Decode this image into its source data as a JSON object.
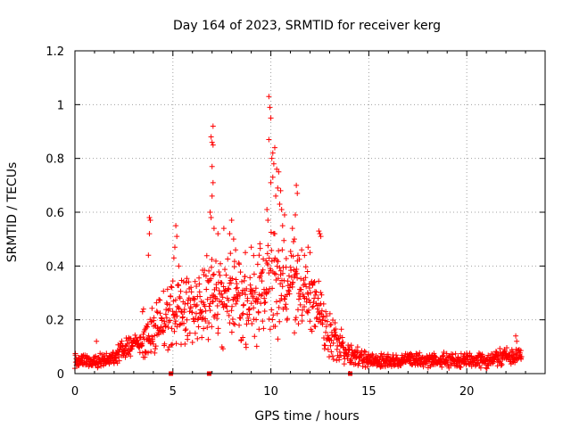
{
  "chart_data": {
    "type": "scatter",
    "title": "Day 164 of 2023, SRMTID for receiver kerg",
    "xlabel": "GPS time / hours",
    "ylabel": "SRMTID / TECUs",
    "xlim": [
      0,
      24
    ],
    "ylim": [
      0,
      1.2
    ],
    "xticks": [
      0,
      5,
      10,
      15,
      20
    ],
    "yticks": [
      0,
      0.2,
      0.4,
      0.6,
      0.8,
      1,
      1.2
    ],
    "ytick_labels": [
      "0",
      "0.2",
      "0.4",
      "0.6",
      "0.8",
      "1",
      "1.2"
    ],
    "grid": true,
    "marker": "+",
    "color": "#ff0000",
    "envelope": [
      {
        "x": 0.0,
        "base": 0.05,
        "spread": 0.02
      },
      {
        "x": 1.0,
        "base": 0.04,
        "spread": 0.02
      },
      {
        "x": 2.0,
        "base": 0.06,
        "spread": 0.02
      },
      {
        "x": 2.5,
        "base": 0.09,
        "spread": 0.03
      },
      {
        "x": 3.0,
        "base": 0.11,
        "spread": 0.03
      },
      {
        "x": 3.5,
        "base": 0.12,
        "spread": 0.05
      },
      {
        "x": 4.0,
        "base": 0.16,
        "spread": 0.07
      },
      {
        "x": 4.5,
        "base": 0.2,
        "spread": 0.08
      },
      {
        "x": 5.0,
        "base": 0.23,
        "spread": 0.09
      },
      {
        "x": 6.0,
        "base": 0.25,
        "spread": 0.1
      },
      {
        "x": 7.0,
        "base": 0.28,
        "spread": 0.12
      },
      {
        "x": 8.0,
        "base": 0.28,
        "spread": 0.12
      },
      {
        "x": 9.0,
        "base": 0.26,
        "spread": 0.11
      },
      {
        "x": 10.0,
        "base": 0.34,
        "spread": 0.14
      },
      {
        "x": 11.0,
        "base": 0.33,
        "spread": 0.12
      },
      {
        "x": 12.0,
        "base": 0.28,
        "spread": 0.1
      },
      {
        "x": 12.5,
        "base": 0.22,
        "spread": 0.08
      },
      {
        "x": 13.0,
        "base": 0.14,
        "spread": 0.06
      },
      {
        "x": 13.5,
        "base": 0.11,
        "spread": 0.05
      },
      {
        "x": 14.0,
        "base": 0.07,
        "spread": 0.03
      },
      {
        "x": 15.0,
        "base": 0.05,
        "spread": 0.02
      },
      {
        "x": 17.0,
        "base": 0.05,
        "spread": 0.02
      },
      {
        "x": 19.0,
        "base": 0.05,
        "spread": 0.02
      },
      {
        "x": 20.0,
        "base": 0.05,
        "spread": 0.02
      },
      {
        "x": 21.0,
        "base": 0.05,
        "spread": 0.02
      },
      {
        "x": 22.5,
        "base": 0.07,
        "spread": 0.03
      },
      {
        "x": 22.8,
        "base": 0.06,
        "spread": 0.02
      }
    ],
    "sample_count": 1400,
    "sample_range": [
      0,
      22.8
    ],
    "peaks": [
      {
        "x": 3.8,
        "y": 0.58
      },
      {
        "x": 3.85,
        "y": 0.57
      },
      {
        "x": 3.8,
        "y": 0.52
      },
      {
        "x": 3.75,
        "y": 0.44
      },
      {
        "x": 3.5,
        "y": 0.24
      },
      {
        "x": 3.45,
        "y": 0.23
      },
      {
        "x": 5.15,
        "y": 0.55
      },
      {
        "x": 5.2,
        "y": 0.51
      },
      {
        "x": 5.1,
        "y": 0.47
      },
      {
        "x": 5.3,
        "y": 0.4
      },
      {
        "x": 5.05,
        "y": 0.43
      },
      {
        "x": 6.95,
        "y": 0.88
      },
      {
        "x": 7.05,
        "y": 0.92
      },
      {
        "x": 7.0,
        "y": 0.86
      },
      {
        "x": 7.05,
        "y": 0.85
      },
      {
        "x": 7.0,
        "y": 0.77
      },
      {
        "x": 7.05,
        "y": 0.71
      },
      {
        "x": 7.0,
        "y": 0.66
      },
      {
        "x": 6.9,
        "y": 0.6
      },
      {
        "x": 6.95,
        "y": 0.58
      },
      {
        "x": 7.1,
        "y": 0.54
      },
      {
        "x": 7.3,
        "y": 0.52
      },
      {
        "x": 7.6,
        "y": 0.54
      },
      {
        "x": 8.0,
        "y": 0.57
      },
      {
        "x": 8.1,
        "y": 0.5
      },
      {
        "x": 7.9,
        "y": 0.52
      },
      {
        "x": 8.2,
        "y": 0.46
      },
      {
        "x": 9.9,
        "y": 1.03
      },
      {
        "x": 9.95,
        "y": 0.99
      },
      {
        "x": 10.0,
        "y": 0.95
      },
      {
        "x": 9.9,
        "y": 0.87
      },
      {
        "x": 10.1,
        "y": 0.82
      },
      {
        "x": 10.2,
        "y": 0.84
      },
      {
        "x": 10.05,
        "y": 0.8
      },
      {
        "x": 10.15,
        "y": 0.78
      },
      {
        "x": 10.3,
        "y": 0.76
      },
      {
        "x": 10.4,
        "y": 0.75
      },
      {
        "x": 10.1,
        "y": 0.73
      },
      {
        "x": 10.0,
        "y": 0.71
      },
      {
        "x": 10.35,
        "y": 0.69
      },
      {
        "x": 10.5,
        "y": 0.68
      },
      {
        "x": 10.25,
        "y": 0.66
      },
      {
        "x": 10.45,
        "y": 0.63
      },
      {
        "x": 10.55,
        "y": 0.61
      },
      {
        "x": 10.7,
        "y": 0.59
      },
      {
        "x": 9.8,
        "y": 0.61
      },
      {
        "x": 9.85,
        "y": 0.57
      },
      {
        "x": 10.6,
        "y": 0.55
      },
      {
        "x": 11.3,
        "y": 0.7
      },
      {
        "x": 11.35,
        "y": 0.67
      },
      {
        "x": 11.25,
        "y": 0.59
      },
      {
        "x": 11.1,
        "y": 0.54
      },
      {
        "x": 11.2,
        "y": 0.5
      },
      {
        "x": 12.45,
        "y": 0.53
      },
      {
        "x": 12.5,
        "y": 0.52
      },
      {
        "x": 12.55,
        "y": 0.51
      },
      {
        "x": 11.9,
        "y": 0.47
      },
      {
        "x": 12.0,
        "y": 0.45
      },
      {
        "x": 9.0,
        "y": 0.47
      },
      {
        "x": 9.4,
        "y": 0.44
      },
      {
        "x": 8.7,
        "y": 0.45
      },
      {
        "x": 22.5,
        "y": 0.14
      },
      {
        "x": 22.55,
        "y": 0.12
      },
      {
        "x": 1.1,
        "y": 0.12
      }
    ],
    "zero_markers": [
      4.9,
      6.85,
      14.05
    ]
  }
}
